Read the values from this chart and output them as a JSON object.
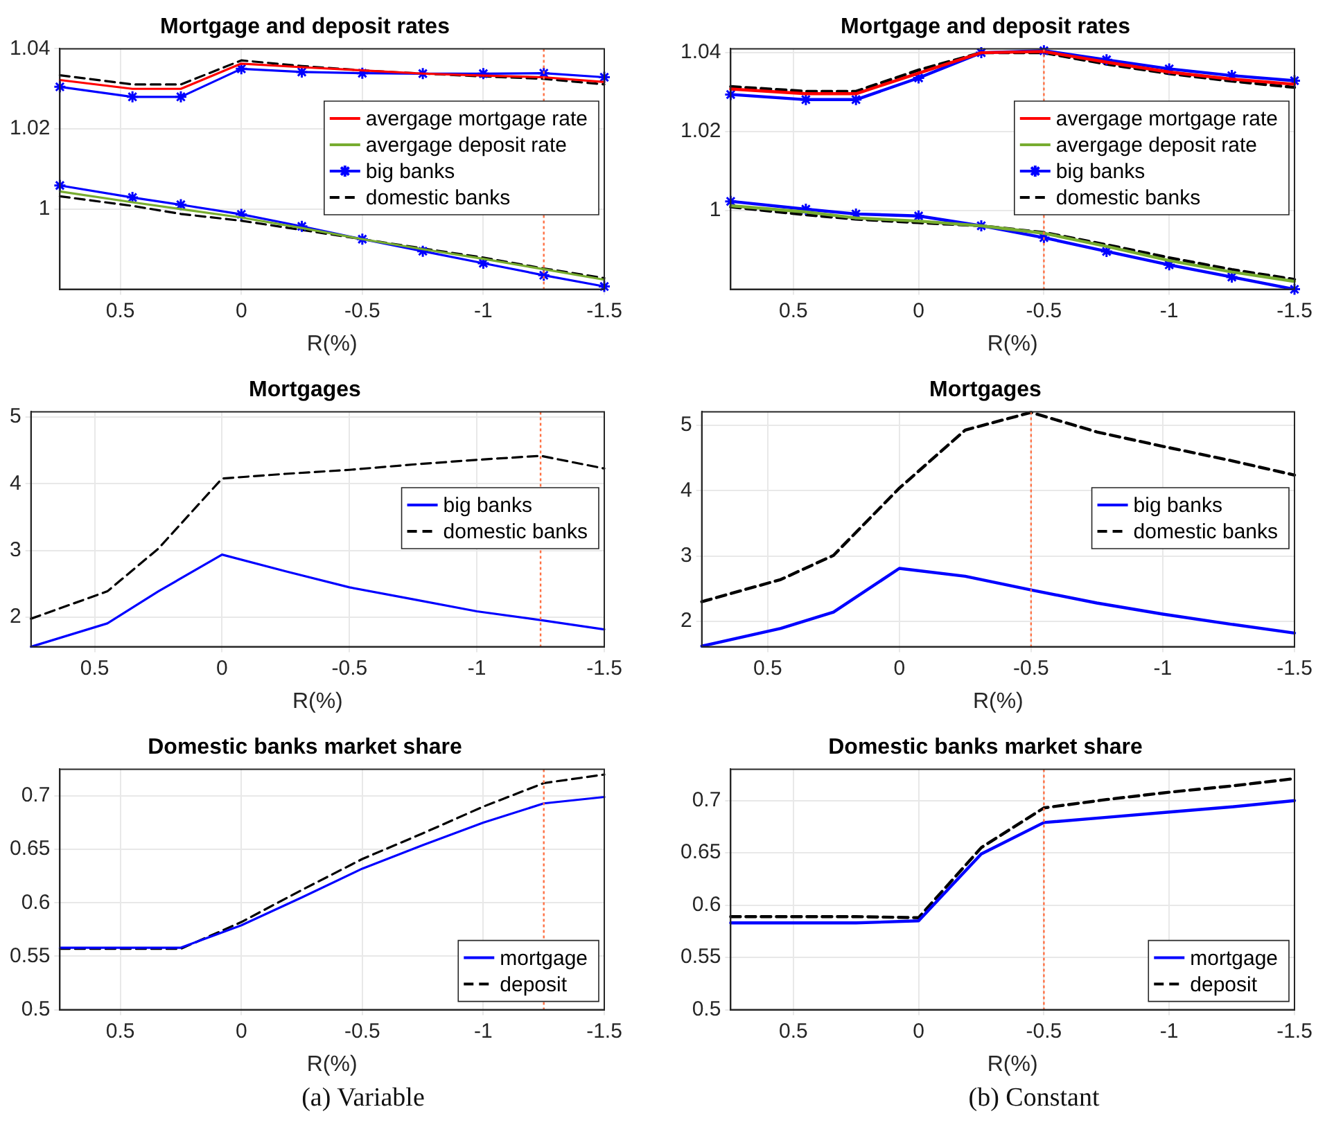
{
  "chart_data": [
    {
      "type": "line",
      "title": "Mortgage and deposit rates",
      "xlabel": "R(%)",
      "x": [
        0.75,
        0.45,
        0.25,
        0,
        -0.25,
        -0.5,
        -0.75,
        -1,
        -1.25,
        -1.5
      ],
      "xlim": [
        0.75,
        -1.5
      ],
      "xticks": [
        0.5,
        0,
        -0.5,
        -1,
        -1.5
      ],
      "ylim": [
        0.98,
        1.04
      ],
      "yticks": [
        1,
        1.02,
        1.04
      ],
      "grid": true,
      "legend": "right",
      "ref_lines": [
        {
          "axis": "x",
          "value": -1.25,
          "color": "#ff7043",
          "line_style": "dotted"
        }
      ],
      "series": [
        {
          "name": "avergage mortgage rate",
          "color": "#ff0000",
          "values": [
            1.0322,
            1.03,
            1.03,
            1.0363,
            1.0354,
            1.0346,
            1.0338,
            1.0333,
            1.0329,
            1.0317
          ]
        },
        {
          "name": "avergage deposit rate",
          "color": "#77ac30",
          "values": [
            1.0044,
            1.0017,
            1.0,
            0.9979,
            0.9953,
            0.9925,
            0.99,
            0.9876,
            0.985,
            0.9824
          ]
        },
        {
          "name": "big banks",
          "color": "#0000ff",
          "marker": "cross",
          "values": [
            1.0305,
            1.028,
            1.028,
            1.035,
            1.0342,
            1.0339,
            1.0338,
            1.0338,
            1.0339,
            1.0329
          ]
        },
        {
          "color": "#0000ff",
          "marker": "cross",
          "values": [
            1.0059,
            1.0029,
            1.0011,
            0.9987,
            0.9957,
            0.9925,
            0.9895,
            0.9865,
            0.9835,
            0.9807
          ]
        },
        {
          "name": "domestic banks",
          "color": "#000000",
          "line_style": "dashed",
          "values": [
            1.0334,
            1.0311,
            1.0311,
            1.0371,
            1.0357,
            1.0346,
            1.0338,
            1.0331,
            1.0325,
            1.0311
          ]
        },
        {
          "color": "#000000",
          "line_style": "dashed",
          "values": [
            1.0032,
            1.0008,
            0.9988,
            0.9971,
            0.9948,
            0.9925,
            0.9902,
            0.9879,
            0.9852,
            0.9828
          ]
        }
      ]
    },
    {
      "type": "line",
      "title": "Mortgage and deposit rates",
      "xlabel": "R(%)",
      "x": [
        0.75,
        0.45,
        0.25,
        0,
        -0.25,
        -0.5,
        -0.75,
        -1,
        -1.25,
        -1.5
      ],
      "xlim": [
        0.75,
        -1.5
      ],
      "xticks": [
        0.5,
        0,
        -0.5,
        -1,
        -1.5
      ],
      "ylim": [
        0.98,
        1.041
      ],
      "yticks": [
        1,
        1.02,
        1.04
      ],
      "grid": true,
      "legend": "right",
      "ref_lines": [
        {
          "axis": "x",
          "value": -0.5,
          "color": "#ff7043",
          "line_style": "dotted"
        }
      ],
      "series": [
        {
          "name": "avergage mortgage rate",
          "color": "#ff0000",
          "values": [
            1.0308,
            1.0296,
            1.0296,
            1.0348,
            1.04,
            1.0403,
            1.0376,
            1.0351,
            1.0333,
            1.032
          ]
        },
        {
          "name": "avergage deposit rate",
          "color": "#77ac30",
          "values": [
            1.0012,
            0.9996,
            0.9981,
            0.9973,
            0.9961,
            0.9942,
            0.9909,
            0.9873,
            0.9844,
            0.982
          ]
        },
        {
          "name": "big banks",
          "color": "#0000ff",
          "marker": "cross",
          "values": [
            1.0294,
            1.0281,
            1.0281,
            1.0336,
            1.04,
            1.0405,
            1.0382,
            1.0359,
            1.0342,
            1.0329
          ]
        },
        {
          "color": "#0000ff",
          "marker": "cross",
          "values": [
            1.0023,
            1.0003,
            0.9991,
            0.9986,
            0.9961,
            0.9931,
            0.9896,
            0.9862,
            0.9831,
            0.98
          ]
        },
        {
          "name": "domestic banks",
          "color": "#000000",
          "line_style": "dashed",
          "values": [
            1.0314,
            1.0302,
            1.0302,
            1.0356,
            1.04,
            1.04,
            1.0371,
            1.0347,
            1.0328,
            1.0312
          ]
        },
        {
          "color": "#000000",
          "line_style": "dashed",
          "values": [
            1.0009,
            0.9989,
            0.9978,
            0.9969,
            0.9961,
            0.9944,
            0.9913,
            0.988,
            0.985,
            0.9825
          ]
        }
      ]
    },
    {
      "type": "line",
      "title": "Mortgages",
      "xlabel": "R(%)",
      "x": [
        0.75,
        0.45,
        0.25,
        0,
        -0.25,
        -0.5,
        -0.75,
        -1,
        -1.25,
        -1.5
      ],
      "xlim": [
        0.75,
        -1.5
      ],
      "xticks": [
        0.5,
        0,
        -0.5,
        -1,
        -1.5
      ],
      "ylim": [
        1.56,
        5.08
      ],
      "yticks": [
        2,
        3,
        4,
        5
      ],
      "grid": true,
      "legend": "right",
      "ref_lines": [
        {
          "axis": "x",
          "value": -1.25,
          "color": "#ff7043",
          "line_style": "dotted"
        }
      ],
      "series": [
        {
          "name": "big banks",
          "color": "#0000ff",
          "values": [
            1.56,
            1.91,
            2.39,
            2.94,
            2.69,
            2.45,
            2.27,
            2.09,
            1.96,
            1.82
          ]
        },
        {
          "name": "domestic banks",
          "color": "#000000",
          "line_style": "dashed",
          "values": [
            1.98,
            2.39,
            3.03,
            4.08,
            4.15,
            4.21,
            4.29,
            4.36,
            4.42,
            4.23
          ]
        }
      ]
    },
    {
      "type": "line",
      "title": "Mortgages",
      "xlabel": "R(%)",
      "x": [
        0.75,
        0.45,
        0.25,
        0,
        -0.25,
        -0.5,
        -0.75,
        -1,
        -1.25,
        -1.5
      ],
      "xlim": [
        0.75,
        -1.5
      ],
      "xticks": [
        0.5,
        0,
        -0.5,
        -1,
        -1.5
      ],
      "ylim": [
        1.61,
        5.21
      ],
      "yticks": [
        2,
        3,
        4,
        5
      ],
      "grid": true,
      "legend": "right",
      "ref_lines": [
        {
          "axis": "x",
          "value": -0.5,
          "color": "#ff7043",
          "line_style": "dotted"
        }
      ],
      "series": [
        {
          "name": "big banks",
          "color": "#0000ff",
          "values": [
            1.62,
            1.89,
            2.14,
            2.81,
            2.69,
            2.48,
            2.28,
            2.11,
            1.96,
            1.82
          ]
        },
        {
          "name": "domestic banks",
          "color": "#000000",
          "line_style": "dashed",
          "values": [
            2.3,
            2.64,
            3.01,
            4.04,
            4.93,
            5.2,
            4.9,
            4.68,
            4.47,
            4.24
          ]
        }
      ]
    },
    {
      "type": "line",
      "title": "Domestic banks market share",
      "xlabel": "R(%)",
      "x": [
        0.75,
        0.45,
        0.25,
        0,
        -0.25,
        -0.5,
        -0.75,
        -1,
        -1.25,
        -1.5
      ],
      "xlim": [
        0.75,
        -1.5
      ],
      "xticks": [
        0.5,
        0,
        -0.5,
        -1,
        -1.5
      ],
      "ylim": [
        0.5,
        0.725
      ],
      "yticks": [
        0.5,
        0.55,
        0.6,
        0.65,
        0.7
      ],
      "grid": true,
      "legend": "bottom right",
      "ref_lines": [
        {
          "axis": "x",
          "value": -1.25,
          "color": "#ff7043",
          "line_style": "dotted"
        }
      ],
      "annotations": [
        "(a) Variable"
      ],
      "series": [
        {
          "name": "mortgage",
          "color": "#0000ff",
          "values": [
            0.558,
            0.558,
            0.558,
            0.579,
            0.605,
            0.632,
            0.654,
            0.675,
            0.693,
            0.699
          ]
        },
        {
          "name": "deposit",
          "color": "#000000",
          "line_style": "dashed",
          "values": [
            0.557,
            0.557,
            0.557,
            0.582,
            0.612,
            0.641,
            0.665,
            0.69,
            0.712,
            0.72
          ]
        }
      ]
    },
    {
      "type": "line",
      "title": "Domestic banks market share",
      "xlabel": "R(%)",
      "x": [
        0.75,
        0.45,
        0.25,
        0,
        -0.25,
        -0.5,
        -0.75,
        -1,
        -1.25,
        -1.5
      ],
      "xlim": [
        0.75,
        -1.5
      ],
      "xticks": [
        0.5,
        0,
        -0.5,
        -1,
        -1.5
      ],
      "ylim": [
        0.5,
        0.73
      ],
      "yticks": [
        0.5,
        0.55,
        0.6,
        0.65,
        0.7
      ],
      "grid": true,
      "legend": "bottom right",
      "ref_lines": [
        {
          "axis": "x",
          "value": -0.5,
          "color": "#ff7043",
          "line_style": "dotted"
        }
      ],
      "annotations": [
        "(b) Constant"
      ],
      "series": [
        {
          "name": "mortgage",
          "color": "#0000ff",
          "values": [
            0.583,
            0.583,
            0.583,
            0.585,
            0.649,
            0.679,
            0.684,
            0.689,
            0.694,
            0.7
          ]
        },
        {
          "name": "deposit",
          "color": "#000000",
          "line_style": "dashed",
          "values": [
            0.589,
            0.589,
            0.589,
            0.588,
            0.655,
            0.693,
            0.701,
            0.708,
            0.714,
            0.721
          ]
        }
      ]
    }
  ]
}
